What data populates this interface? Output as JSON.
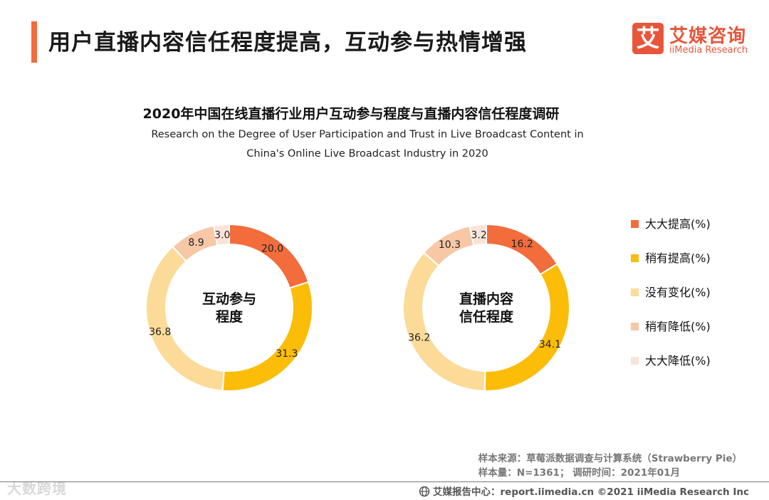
{
  "header": {
    "title": "用户直播内容信任程度提高，互动参与热情增强",
    "logo_icon_char": "艾",
    "logo_cn": "艾媒咨询",
    "logo_en": "iiMedia Research"
  },
  "chart_data": {
    "type": "donut",
    "title": "2020年中国在线直播行业用户互动参与程度与直播内容信任程度调研",
    "subtitle_line1": "Research on the Degree of User Participation and Trust in Live Broadcast Content in",
    "subtitle_line2": "China's Online Live Broadcast Industry in 2020",
    "categories": [
      "大大提高(%)",
      "稍有提高(%)",
      "没有变化(%)",
      "稍有降低(%)",
      "大大降低(%)"
    ],
    "colors": [
      "#f26c3c",
      "#fbbd08",
      "#fcdb98",
      "#f8c7a6",
      "#fbe3d7"
    ],
    "series": [
      {
        "name": "互动参与程度",
        "center_line1": "互动参与",
        "center_line2": "程度",
        "values": [
          20.0,
          31.3,
          36.8,
          8.9,
          3.0
        ]
      },
      {
        "name": "直播内容信任程度",
        "center_line1": "直播内容",
        "center_line2": "信任程度",
        "values": [
          16.2,
          34.1,
          36.2,
          10.3,
          3.2
        ]
      }
    ]
  },
  "source": {
    "line1": "样本来源：草莓派数据调查与计算系统（Strawberry Pie）",
    "line2": "样本量：N=1361；  调研时间：2021年01月"
  },
  "footer": {
    "text": "艾媒报告中心：report.iimedia.cn  ©2021  iiMedia Research  Inc"
  },
  "watermark": "大数跨境"
}
